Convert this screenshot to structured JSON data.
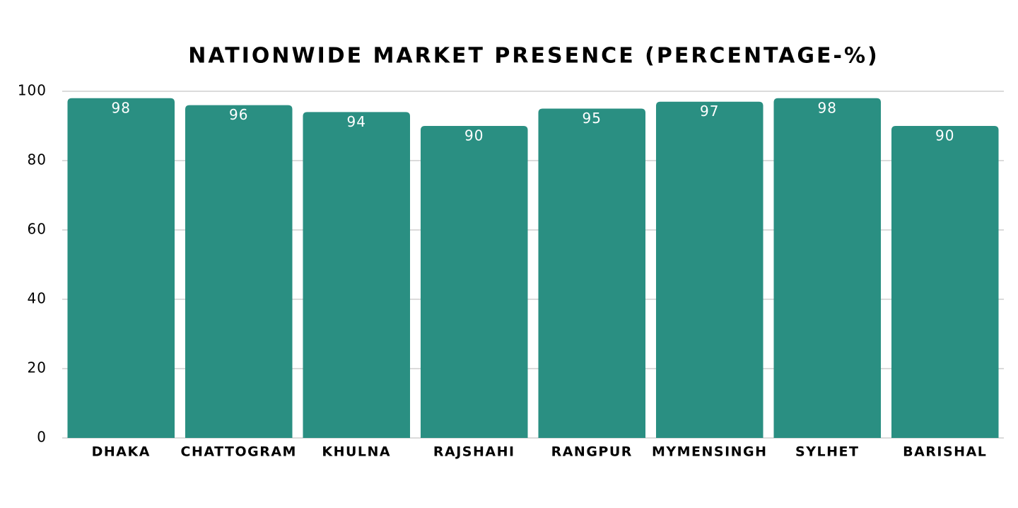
{
  "chart_data": {
    "type": "bar",
    "title": "NATIONWIDE MARKET PRESENCE (PERCENTAGE-%)",
    "categories": [
      "DHAKA",
      "CHATTOGRAM",
      "KHULNA",
      "RAJSHAHI",
      "RANGPUR",
      "MYMENSINGH",
      "SYLHET",
      "BARISHAL"
    ],
    "values": [
      98,
      96,
      94,
      90,
      95,
      97,
      98,
      90
    ],
    "color": "#2a8f82",
    "ylim": [
      0,
      100
    ],
    "yticks": [
      0,
      20,
      40,
      60,
      80,
      100
    ],
    "grid": true
  }
}
